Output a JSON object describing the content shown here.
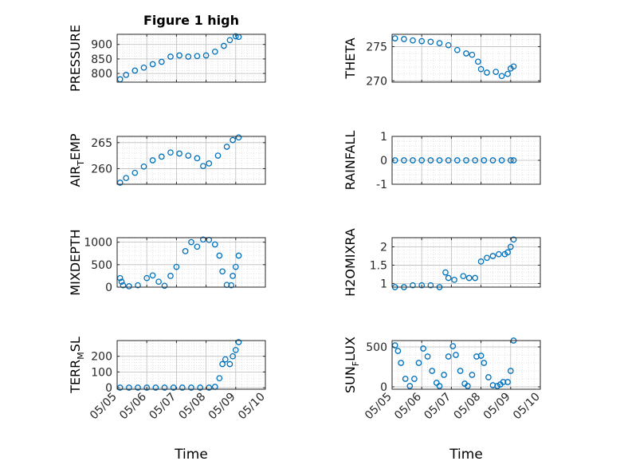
{
  "chart_data": [
    {
      "type": "scatter",
      "title": "Figure 1 high",
      "ylabel": "PRESSURE",
      "ylabel_sub": "",
      "ylabel_after": "",
      "xlabel": "",
      "xticklabels": [],
      "yticks": [
        800,
        850,
        900
      ],
      "yticklabels": [
        "800",
        "850",
        "900"
      ],
      "ylim": [
        770,
        935
      ],
      "xlim": [
        0,
        5
      ],
      "points": [
        [
          0.1,
          780
        ],
        [
          0.3,
          795
        ],
        [
          0.6,
          810
        ],
        [
          0.9,
          820
        ],
        [
          1.2,
          832
        ],
        [
          1.5,
          840
        ],
        [
          1.8,
          858
        ],
        [
          2.1,
          862
        ],
        [
          2.4,
          858
        ],
        [
          2.7,
          860
        ],
        [
          3.0,
          862
        ],
        [
          3.3,
          875
        ],
        [
          3.6,
          895
        ],
        [
          3.8,
          915
        ],
        [
          4.0,
          928
        ],
        [
          4.1,
          926
        ]
      ]
    },
    {
      "type": "scatter",
      "title": "",
      "ylabel": "THETA",
      "ylabel_sub": "",
      "ylabel_after": "",
      "xlabel": "",
      "xticklabels": [],
      "yticks": [
        270,
        275
      ],
      "yticklabels": [
        "270",
        "275"
      ],
      "ylim": [
        269.8,
        276.8
      ],
      "xlim": [
        0,
        5
      ],
      "points": [
        [
          0.1,
          276.2
        ],
        [
          0.4,
          276.1
        ],
        [
          0.7,
          275.9
        ],
        [
          1.0,
          275.8
        ],
        [
          1.3,
          275.7
        ],
        [
          1.6,
          275.5
        ],
        [
          1.9,
          275.2
        ],
        [
          2.2,
          274.5
        ],
        [
          2.5,
          274.0
        ],
        [
          2.7,
          273.8
        ],
        [
          2.9,
          272.8
        ],
        [
          3.0,
          271.7
        ],
        [
          3.2,
          271.2
        ],
        [
          3.5,
          271.3
        ],
        [
          3.7,
          270.7
        ],
        [
          3.9,
          271.0
        ],
        [
          4.0,
          271.8
        ],
        [
          4.1,
          272.1
        ]
      ]
    },
    {
      "type": "scatter",
      "title": "",
      "ylabel": "AIR",
      "ylabel_sub": "T",
      "ylabel_after": "EMP",
      "xlabel": "",
      "xticklabels": [],
      "yticks": [
        260,
        265
      ],
      "yticklabels": [
        "260",
        "265"
      ],
      "ylim": [
        257,
        266.2
      ],
      "xlim": [
        0,
        5
      ],
      "points": [
        [
          0.1,
          257.3
        ],
        [
          0.3,
          258.2
        ],
        [
          0.6,
          259.2
        ],
        [
          0.9,
          260.4
        ],
        [
          1.2,
          261.6
        ],
        [
          1.5,
          262.3
        ],
        [
          1.8,
          263.1
        ],
        [
          2.1,
          262.9
        ],
        [
          2.4,
          262.5
        ],
        [
          2.7,
          262.0
        ],
        [
          2.9,
          260.5
        ],
        [
          3.1,
          261.0
        ],
        [
          3.4,
          262.5
        ],
        [
          3.7,
          264.2
        ],
        [
          3.9,
          265.5
        ],
        [
          4.1,
          266.0
        ]
      ]
    },
    {
      "type": "scatter",
      "title": "",
      "ylabel": "RAINFALL",
      "ylabel_sub": "",
      "ylabel_after": "",
      "xlabel": "",
      "xticklabels": [],
      "yticks": [
        -1,
        0,
        1
      ],
      "yticklabels": [
        "-1",
        "0",
        "1"
      ],
      "ylim": [
        -1,
        1
      ],
      "xlim": [
        0,
        5
      ],
      "points": [
        [
          0.1,
          0
        ],
        [
          0.4,
          0
        ],
        [
          0.7,
          0
        ],
        [
          1.0,
          0
        ],
        [
          1.3,
          0
        ],
        [
          1.6,
          0
        ],
        [
          1.9,
          0
        ],
        [
          2.2,
          0
        ],
        [
          2.5,
          0
        ],
        [
          2.8,
          0
        ],
        [
          3.1,
          0
        ],
        [
          3.4,
          0
        ],
        [
          3.7,
          0
        ],
        [
          4.0,
          0
        ],
        [
          4.1,
          0
        ]
      ]
    },
    {
      "type": "scatter",
      "title": "",
      "ylabel": "MIXDEPTH",
      "ylabel_sub": "",
      "ylabel_after": "",
      "xlabel": "",
      "xticklabels": [],
      "yticks": [
        0,
        500,
        1000
      ],
      "yticklabels": [
        "0",
        "500",
        "1000"
      ],
      "ylim": [
        0,
        1100
      ],
      "xlim": [
        0,
        5
      ],
      "points": [
        [
          0.1,
          200
        ],
        [
          0.15,
          120
        ],
        [
          0.2,
          40
        ],
        [
          0.4,
          20
        ],
        [
          0.7,
          40
        ],
        [
          1.0,
          200
        ],
        [
          1.2,
          260
        ],
        [
          1.4,
          120
        ],
        [
          1.6,
          30
        ],
        [
          1.8,
          250
        ],
        [
          2.0,
          450
        ],
        [
          2.3,
          800
        ],
        [
          2.5,
          1000
        ],
        [
          2.7,
          900
        ],
        [
          2.9,
          1060
        ],
        [
          3.1,
          1050
        ],
        [
          3.3,
          950
        ],
        [
          3.45,
          700
        ],
        [
          3.55,
          350
        ],
        [
          3.7,
          50
        ],
        [
          3.85,
          40
        ],
        [
          3.9,
          250
        ],
        [
          4.0,
          450
        ],
        [
          4.1,
          700
        ]
      ]
    },
    {
      "type": "scatter",
      "title": "",
      "ylabel": "H2OMIXRA",
      "ylabel_sub": "",
      "ylabel_after": "",
      "xlabel": "",
      "xticklabels": [],
      "yticks": [
        1,
        1.5,
        2
      ],
      "yticklabels": [
        "1",
        "1.5",
        "2"
      ],
      "ylim": [
        0.9,
        2.25
      ],
      "xlim": [
        0,
        5
      ],
      "points": [
        [
          0.1,
          0.9
        ],
        [
          0.4,
          0.9
        ],
        [
          0.7,
          0.95
        ],
        [
          1.0,
          0.95
        ],
        [
          1.3,
          0.95
        ],
        [
          1.6,
          0.9
        ],
        [
          1.8,
          1.3
        ],
        [
          1.9,
          1.15
        ],
        [
          2.1,
          1.1
        ],
        [
          2.4,
          1.2
        ],
        [
          2.6,
          1.15
        ],
        [
          2.8,
          1.15
        ],
        [
          3.0,
          1.6
        ],
        [
          3.2,
          1.7
        ],
        [
          3.4,
          1.75
        ],
        [
          3.6,
          1.8
        ],
        [
          3.8,
          1.8
        ],
        [
          3.9,
          1.85
        ],
        [
          4.0,
          2.0
        ],
        [
          4.1,
          2.2
        ]
      ]
    },
    {
      "type": "scatter",
      "title": "",
      "ylabel": "TERR",
      "ylabel_sub": "M",
      "ylabel_after": "SL",
      "xlabel": "Time",
      "xticklabels": [
        "05/05",
        "05/06",
        "05/07",
        "05/08",
        "05/09",
        "05/10"
      ],
      "yticks": [
        0,
        100,
        200
      ],
      "yticklabels": [
        "0",
        "100",
        "200"
      ],
      "ylim": [
        -10,
        300
      ],
      "xlim": [
        0,
        5
      ],
      "points": [
        [
          0.1,
          0
        ],
        [
          0.4,
          0
        ],
        [
          0.7,
          0
        ],
        [
          1.0,
          0
        ],
        [
          1.3,
          0
        ],
        [
          1.6,
          0
        ],
        [
          1.9,
          0
        ],
        [
          2.2,
          0
        ],
        [
          2.5,
          0
        ],
        [
          2.8,
          0
        ],
        [
          3.1,
          0
        ],
        [
          3.3,
          5
        ],
        [
          3.45,
          60
        ],
        [
          3.55,
          150
        ],
        [
          3.65,
          180
        ],
        [
          3.8,
          150
        ],
        [
          3.9,
          200
        ],
        [
          4.0,
          240
        ],
        [
          4.1,
          290
        ]
      ]
    },
    {
      "type": "scatter",
      "title": "",
      "ylabel": "SUN",
      "ylabel_sub": "F",
      "ylabel_after": "LUX",
      "xlabel": "Time",
      "xticklabels": [
        "05/05",
        "05/06",
        "05/07",
        "05/08",
        "05/09",
        "05/10"
      ],
      "yticks": [
        0,
        500
      ],
      "yticklabels": [
        "0",
        "500"
      ],
      "ylim": [
        -30,
        580
      ],
      "xlim": [
        0,
        5
      ],
      "points": [
        [
          0.1,
          520
        ],
        [
          0.2,
          450
        ],
        [
          0.3,
          300
        ],
        [
          0.45,
          100
        ],
        [
          0.6,
          10
        ],
        [
          0.75,
          100
        ],
        [
          0.9,
          300
        ],
        [
          1.05,
          480
        ],
        [
          1.2,
          380
        ],
        [
          1.35,
          200
        ],
        [
          1.5,
          50
        ],
        [
          1.6,
          10
        ],
        [
          1.75,
          150
        ],
        [
          1.9,
          380
        ],
        [
          2.05,
          510
        ],
        [
          2.15,
          400
        ],
        [
          2.3,
          200
        ],
        [
          2.45,
          40
        ],
        [
          2.55,
          10
        ],
        [
          2.7,
          150
        ],
        [
          2.85,
          380
        ],
        [
          3.0,
          390
        ],
        [
          3.1,
          300
        ],
        [
          3.25,
          120
        ],
        [
          3.4,
          20
        ],
        [
          3.55,
          10
        ],
        [
          3.65,
          30
        ],
        [
          3.75,
          60
        ],
        [
          3.9,
          60
        ],
        [
          4.0,
          200
        ],
        [
          4.1,
          580
        ]
      ]
    }
  ]
}
